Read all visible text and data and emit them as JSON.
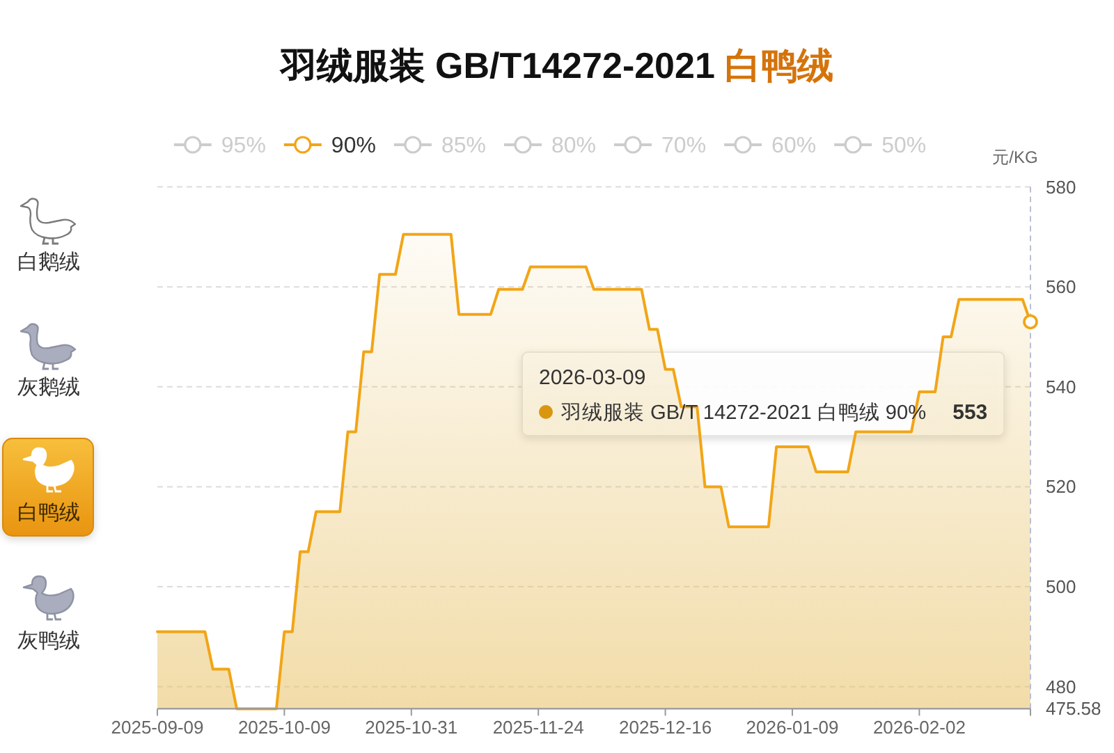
{
  "chart_data": {
    "type": "area",
    "title": "羽绒服装 GB/T14272-2021 白鸭绒",
    "ylabel": "元/KG",
    "categories": [
      "2025-09-09",
      null,
      null,
      null,
      null,
      null,
      null,
      null,
      null,
      null,
      null,
      null,
      null,
      null,
      null,
      null,
      "2025-10-09",
      null,
      null,
      null,
      null,
      null,
      null,
      null,
      null,
      null,
      null,
      null,
      null,
      null,
      null,
      null,
      "2025-10-31",
      null,
      null,
      null,
      null,
      null,
      null,
      null,
      null,
      null,
      null,
      null,
      null,
      null,
      null,
      null,
      "2025-11-24",
      null,
      null,
      null,
      null,
      null,
      null,
      null,
      null,
      null,
      null,
      null,
      null,
      null,
      null,
      null,
      "2025-12-16",
      null,
      null,
      null,
      null,
      null,
      null,
      null,
      null,
      null,
      null,
      null,
      null,
      null,
      null,
      null,
      "2026-01-09",
      null,
      null,
      null,
      null,
      null,
      null,
      null,
      null,
      null,
      null,
      null,
      null,
      null,
      null,
      null,
      "2026-02-02",
      null,
      null,
      null,
      null,
      null,
      null,
      null,
      null,
      null,
      null,
      null,
      null,
      null,
      null
    ],
    "series": [
      {
        "name": "95%",
        "color": "#cccccc",
        "values": [
          null,
          null,
          null,
          null,
          null,
          null,
          null,
          null,
          null,
          null,
          null,
          null,
          null,
          null,
          null,
          null,
          null,
          null,
          null,
          null,
          null,
          null,
          null,
          null,
          null,
          null,
          null,
          null,
          null,
          null,
          null,
          null,
          null,
          null,
          null,
          null,
          null,
          null,
          null,
          null,
          null,
          null,
          null,
          null,
          null,
          null,
          null,
          null,
          null,
          null,
          null,
          null,
          null,
          null,
          null,
          null,
          null,
          null,
          null,
          null,
          null,
          null,
          null,
          null,
          null,
          null,
          null,
          null,
          null,
          null,
          null,
          null,
          null,
          null,
          null,
          null,
          null,
          null,
          null,
          null,
          null,
          null,
          null,
          null,
          null,
          null,
          null,
          null,
          null,
          null,
          null,
          null,
          null,
          null,
          null,
          null,
          null,
          null,
          null,
          null,
          null,
          null,
          null,
          null,
          null,
          null,
          null,
          null,
          null,
          null,
          null
        ]
      },
      {
        "name": "90%",
        "color": "#f2a516",
        "values": [
          491,
          491,
          491,
          491,
          491,
          491,
          491,
          483.5,
          483.5,
          483.5,
          475.58,
          475.58,
          475.58,
          475.58,
          475.58,
          475.58,
          491,
          491,
          507,
          507,
          515,
          515,
          515,
          515,
          531,
          531,
          547,
          547,
          562.5,
          562.5,
          562.5,
          570.5,
          570.5,
          570.5,
          570.5,
          570.5,
          570.5,
          570.5,
          554.5,
          554.5,
          554.5,
          554.5,
          554.5,
          559.5,
          559.5,
          559.5,
          559.5,
          564,
          564,
          564,
          564,
          564,
          564,
          564,
          564,
          559.5,
          559.5,
          559.5,
          559.5,
          559.5,
          559.5,
          559.5,
          551.5,
          551.5,
          543.5,
          543.5,
          536,
          536,
          536,
          520,
          520,
          520,
          512,
          512,
          512,
          512,
          512,
          512,
          528,
          528,
          528,
          528,
          528,
          523,
          523,
          523,
          523,
          523,
          531,
          531,
          531,
          531,
          531,
          531,
          531,
          531,
          539,
          539,
          539,
          550,
          550,
          557.5,
          557.5,
          557.5,
          557.5,
          557.5,
          557.5,
          557.5,
          557.5,
          557.5,
          553
        ]
      },
      {
        "name": "85%",
        "color": "#cccccc",
        "values": [
          null,
          null,
          null,
          null,
          null,
          null,
          null,
          null,
          null,
          null,
          null,
          null,
          null,
          null,
          null,
          null,
          null,
          null,
          null,
          null,
          null,
          null,
          null,
          null,
          null,
          null,
          null,
          null,
          null,
          null,
          null,
          null,
          null,
          null,
          null,
          null,
          null,
          null,
          null,
          null,
          null,
          null,
          null,
          null,
          null,
          null,
          null,
          null,
          null,
          null,
          null,
          null,
          null,
          null,
          null,
          null,
          null,
          null,
          null,
          null,
          null,
          null,
          null,
          null,
          null,
          null,
          null,
          null,
          null,
          null,
          null,
          null,
          null,
          null,
          null,
          null,
          null,
          null,
          null,
          null,
          null,
          null,
          null,
          null,
          null,
          null,
          null,
          null,
          null,
          null,
          null,
          null,
          null,
          null,
          null,
          null,
          null,
          null,
          null,
          null,
          null,
          null,
          null,
          null,
          null,
          null,
          null,
          null,
          null,
          null,
          null
        ]
      },
      {
        "name": "80%",
        "color": "#cccccc",
        "values": [
          null,
          null,
          null,
          null,
          null,
          null,
          null,
          null,
          null,
          null,
          null,
          null,
          null,
          null,
          null,
          null,
          null,
          null,
          null,
          null,
          null,
          null,
          null,
          null,
          null,
          null,
          null,
          null,
          null,
          null,
          null,
          null,
          null,
          null,
          null,
          null,
          null,
          null,
          null,
          null,
          null,
          null,
          null,
          null,
          null,
          null,
          null,
          null,
          null,
          null,
          null,
          null,
          null,
          null,
          null,
          null,
          null,
          null,
          null,
          null,
          null,
          null,
          null,
          null,
          null,
          null,
          null,
          null,
          null,
          null,
          null,
          null,
          null,
          null,
          null,
          null,
          null,
          null,
          null,
          null,
          null,
          null,
          null,
          null,
          null,
          null,
          null,
          null,
          null,
          null,
          null,
          null,
          null,
          null,
          null,
          null,
          null,
          null,
          null,
          null,
          null,
          null,
          null,
          null,
          null,
          null,
          null,
          null,
          null,
          null,
          null
        ]
      },
      {
        "name": "70%",
        "color": "#cccccc",
        "values": [
          null,
          null,
          null,
          null,
          null,
          null,
          null,
          null,
          null,
          null,
          null,
          null,
          null,
          null,
          null,
          null,
          null,
          null,
          null,
          null,
          null,
          null,
          null,
          null,
          null,
          null,
          null,
          null,
          null,
          null,
          null,
          null,
          null,
          null,
          null,
          null,
          null,
          null,
          null,
          null,
          null,
          null,
          null,
          null,
          null,
          null,
          null,
          null,
          null,
          null,
          null,
          null,
          null,
          null,
          null,
          null,
          null,
          null,
          null,
          null,
          null,
          null,
          null,
          null,
          null,
          null,
          null,
          null,
          null,
          null,
          null,
          null,
          null,
          null,
          null,
          null,
          null,
          null,
          null,
          null,
          null,
          null,
          null,
          null,
          null,
          null,
          null,
          null,
          null,
          null,
          null,
          null,
          null,
          null,
          null,
          null,
          null,
          null,
          null,
          null,
          null,
          null,
          null,
          null,
          null,
          null,
          null,
          null,
          null,
          null,
          null
        ]
      },
      {
        "name": "60%",
        "color": "#cccccc",
        "values": [
          null,
          null,
          null,
          null,
          null,
          null,
          null,
          null,
          null,
          null,
          null,
          null,
          null,
          null,
          null,
          null,
          null,
          null,
          null,
          null,
          null,
          null,
          null,
          null,
          null,
          null,
          null,
          null,
          null,
          null,
          null,
          null,
          null,
          null,
          null,
          null,
          null,
          null,
          null,
          null,
          null,
          null,
          null,
          null,
          null,
          null,
          null,
          null,
          null,
          null,
          null,
          null,
          null,
          null,
          null,
          null,
          null,
          null,
          null,
          null,
          null,
          null,
          null,
          null,
          null,
          null,
          null,
          null,
          null,
          null,
          null,
          null,
          null,
          null,
          null,
          null,
          null,
          null,
          null,
          null,
          null,
          null,
          null,
          null,
          null,
          null,
          null,
          null,
          null,
          null,
          null,
          null,
          null,
          null,
          null,
          null,
          null,
          null,
          null,
          null,
          null,
          null,
          null,
          null,
          null,
          null,
          null,
          null,
          null,
          null,
          null
        ]
      },
      {
        "name": "50%",
        "color": "#cccccc",
        "values": [
          null,
          null,
          null,
          null,
          null,
          null,
          null,
          null,
          null,
          null,
          null,
          null,
          null,
          null,
          null,
          null,
          null,
          null,
          null,
          null,
          null,
          null,
          null,
          null,
          null,
          null,
          null,
          null,
          null,
          null,
          null,
          null,
          null,
          null,
          null,
          null,
          null,
          null,
          null,
          null,
          null,
          null,
          null,
          null,
          null,
          null,
          null,
          null,
          null,
          null,
          null,
          null,
          null,
          null,
          null,
          null,
          null,
          null,
          null,
          null,
          null,
          null,
          null,
          null,
          null,
          null,
          null,
          null,
          null,
          null,
          null,
          null,
          null,
          null,
          null,
          null,
          null,
          null,
          null,
          null,
          null,
          null,
          null,
          null,
          null,
          null,
          null,
          null,
          null,
          null,
          null,
          null,
          null,
          null,
          null,
          null,
          null,
          null,
          null,
          null,
          null,
          null,
          null,
          null,
          null,
          null,
          null,
          null,
          null,
          null,
          null
        ]
      }
    ],
    "ylim": [
      475.58,
      580
    ],
    "yticks": [
      475.58,
      480,
      500,
      520,
      540,
      560,
      580
    ],
    "grid": "y",
    "legend": "top",
    "annotations": [
      "2026-03-09",
      "羽绒服装 GB/T 14272-2021 白鸭绒 90%",
      "553",
      "白鹅绒",
      "灰鹅绒",
      "白鸭绒",
      "灰鸭绒"
    ]
  }
}
